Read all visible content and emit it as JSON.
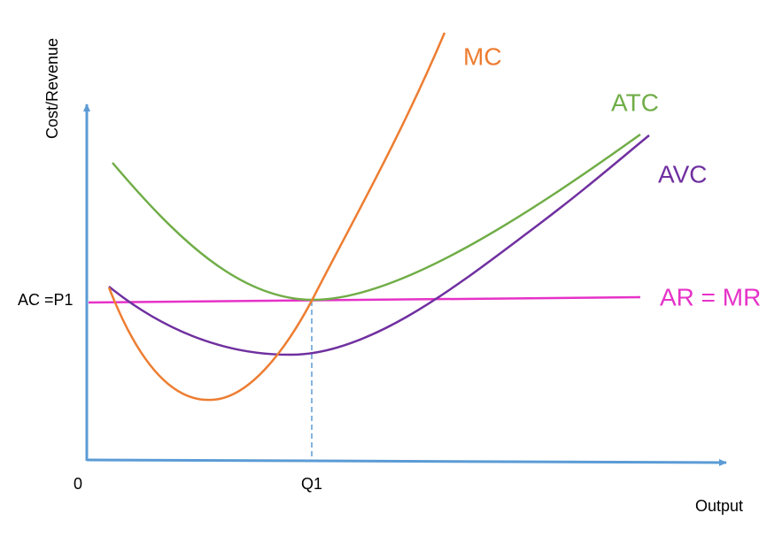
{
  "axes": {
    "y_label": "Cost/Revenue",
    "x_label": "Output",
    "origin": "0",
    "x_tick": "Q1",
    "y_tick": "AC =P1"
  },
  "curves": {
    "mc": "MC",
    "atc": "ATC",
    "avc": "AVC",
    "ar_mr": "AR = MR"
  }
}
